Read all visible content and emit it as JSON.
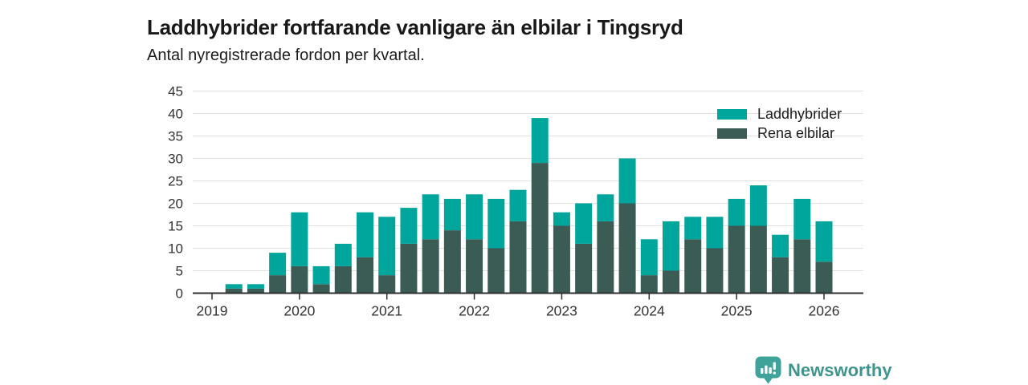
{
  "chart_data": {
    "type": "bar",
    "stacked": true,
    "title": "Laddhybrider fortfarande vanligare än elbilar i Tingsryd",
    "subtitle": "Antal nyregistrerade fordon per kvartal.",
    "categories": [
      "2019 Q2",
      "2019 Q3",
      "2019 Q4",
      "2020 Q1",
      "2020 Q2",
      "2020 Q3",
      "2020 Q4",
      "2021 Q1",
      "2021 Q2",
      "2021 Q3",
      "2021 Q4",
      "2022 Q1",
      "2022 Q2",
      "2022 Q3",
      "2022 Q4",
      "2023 Q1",
      "2023 Q2",
      "2023 Q3",
      "2023 Q4",
      "2024 Q1",
      "2024 Q2",
      "2024 Q3",
      "2024 Q4",
      "2025 Q1",
      "2025 Q2",
      "2025 Q3",
      "2025 Q4",
      "2026 Q1"
    ],
    "series": [
      {
        "name": "Laddhybrider",
        "color": "#00A69B",
        "values": [
          1,
          1,
          5,
          12,
          4,
          5,
          10,
          13,
          8,
          10,
          7,
          10,
          11,
          7,
          10,
          3,
          9,
          6,
          10,
          8,
          11,
          5,
          7,
          6,
          9,
          5,
          9,
          9
        ]
      },
      {
        "name": "Rena elbilar",
        "color": "#3B5B55",
        "values": [
          1,
          1,
          4,
          6,
          2,
          6,
          8,
          4,
          11,
          12,
          14,
          12,
          10,
          16,
          29,
          15,
          11,
          16,
          20,
          4,
          5,
          12,
          10,
          15,
          15,
          8,
          12,
          7
        ]
      }
    ],
    "stack_bottom": "Rena elbilar",
    "x_tick_labels": [
      "2019",
      "2020",
      "2021",
      "2022",
      "2023",
      "2024",
      "2025",
      "2026"
    ],
    "y_ticks": [
      0,
      5,
      10,
      15,
      20,
      25,
      30,
      35,
      40,
      45
    ],
    "ylim": [
      0,
      45
    ],
    "grid": "horizontal",
    "legend_position": "top-right",
    "axis_color": "#303030",
    "gridline_color": "#E1E1E1"
  },
  "footer": {
    "brand": "Newsworthy",
    "brand_color": "#3F948D",
    "badge_color": "#3FA39B"
  }
}
